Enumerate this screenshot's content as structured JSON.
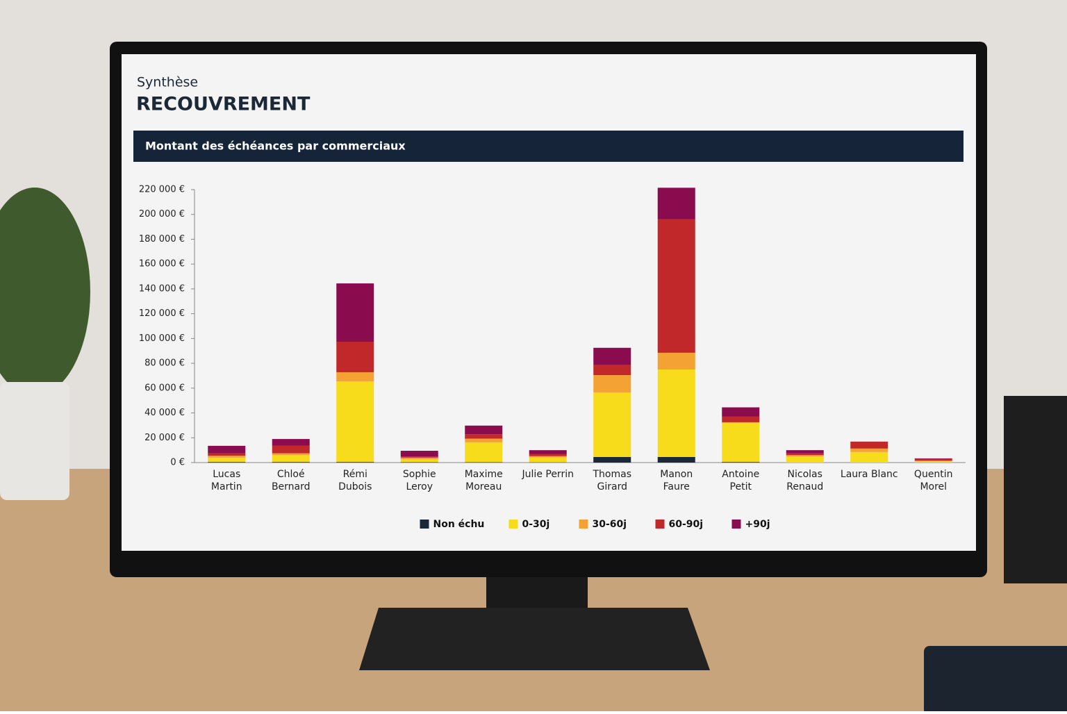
{
  "header": {
    "subtitle": "Synthèse",
    "title": "RECOUVREMENT"
  },
  "chart_data": {
    "type": "stacked_bar",
    "title": "Montant des échéances par commerciaux",
    "categories": [
      "Lucas Martin",
      "Chloé Bernard",
      "Rémi Dubois",
      "Sophie Leroy",
      "Maxime Moreau",
      "Julie Perrin",
      "Thomas Girard",
      "Manon Faure",
      "Antoine Petit",
      "Nicolas Renaud",
      "Laura Blanc",
      "Quentin Morel"
    ],
    "series": [
      {
        "name": "Non échu",
        "color": "#1b2838",
        "values": [
          500,
          500,
          500,
          300,
          300,
          200,
          4500,
          4500,
          500,
          0,
          0,
          0
        ]
      },
      {
        "name": "0-30j",
        "color": "#f7dc1b",
        "values": [
          3500,
          5500,
          65000,
          2500,
          16000,
          4000,
          52000,
          70500,
          31500,
          5000,
          8500,
          1000
        ]
      },
      {
        "name": "30-60j",
        "color": "#f4a233",
        "values": [
          1500,
          1500,
          7300,
          1200,
          3000,
          1000,
          14000,
          13500,
          500,
          1000,
          2800,
          500
        ]
      },
      {
        "name": "60-90j",
        "color": "#c0282a",
        "values": [
          2000,
          6000,
          24600,
          1000,
          3500,
          1800,
          8000,
          107500,
          4500,
          1500,
          5600,
          1500
        ]
      },
      {
        "name": "+90j",
        "color": "#8a0c4e",
        "values": [
          6000,
          5500,
          47000,
          4500,
          7000,
          3000,
          14000,
          25500,
          7500,
          2500,
          0,
          400
        ]
      }
    ],
    "ylim": [
      0,
      220000
    ],
    "yticks": [
      {
        "value": 0,
        "label": "0 €"
      },
      {
        "value": 20000,
        "label": "20 000 €"
      },
      {
        "value": 40000,
        "label": "40 000 €"
      },
      {
        "value": 60000,
        "label": "60 000 €"
      },
      {
        "value": 80000,
        "label": "80 000 €"
      },
      {
        "value": 100000,
        "label": "100 000 €"
      },
      {
        "value": 120000,
        "label": "120 000 €"
      },
      {
        "value": 140000,
        "label": "140 000 €"
      },
      {
        "value": 160000,
        "label": "160 000 €"
      },
      {
        "value": 180000,
        "label": "180 000 €"
      },
      {
        "value": 200000,
        "label": "200 000 €"
      },
      {
        "value": 220000,
        "label": "220 000 €"
      }
    ],
    "grid": false,
    "legend": "bottom"
  }
}
